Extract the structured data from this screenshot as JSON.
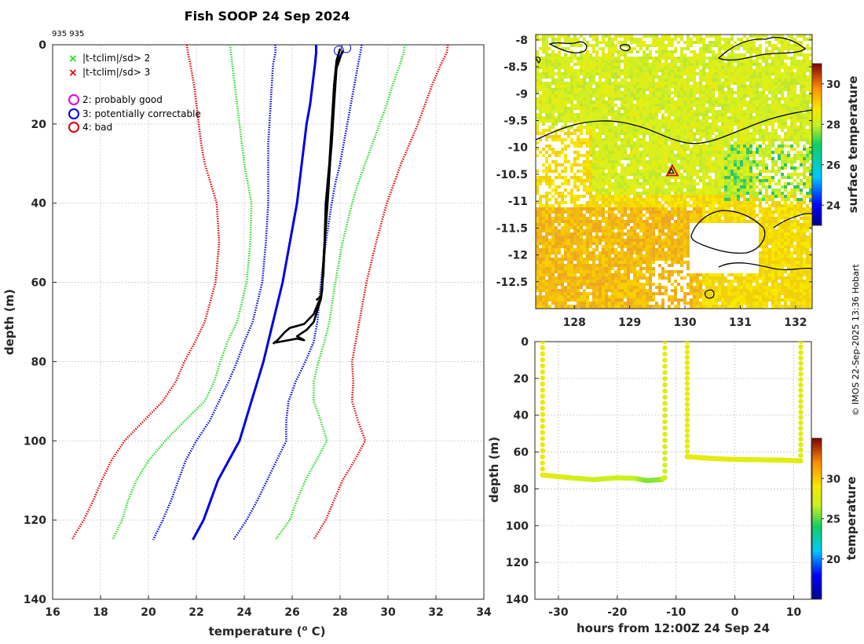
{
  "header": {
    "title": "Fish SOOP 24 Sep 2024",
    "id_label": "935 935"
  },
  "credit": "© IMOS 22-Sep-2025 13:36 Hobart",
  "colors": {
    "red": "#e00000",
    "green": "#22dd22",
    "blue": "#0000e0",
    "black": "#000000",
    "magenta": "#e000e0",
    "grid": "#c8c8c8"
  },
  "chart_data": [
    {
      "type": "line",
      "panel": "profile",
      "title": "Fish SOOP 24 Sep 2024",
      "xlabel": "temperature (",
      "xlabel_sup": "o",
      "xlabel_tail": " C)",
      "ylabel": "depth (m)",
      "xlim": [
        16,
        34
      ],
      "ylim": [
        0,
        140
      ],
      "xticks": [
        "16",
        "18",
        "20",
        "22",
        "24",
        "26",
        "28",
        "30",
        "32",
        "34"
      ],
      "yticks": [
        "0",
        "20",
        "40",
        "60",
        "80",
        "100",
        "120",
        "140"
      ],
      "legend": [
        {
          "marker": "x",
          "color": "green",
          "label": "|t-tclim|/sd> 2"
        },
        {
          "marker": "x",
          "color": "red",
          "label": "|t-tclim|/sd> 3"
        },
        {
          "marker": "o",
          "color": "magenta",
          "label": "2: probably good"
        },
        {
          "marker": "o",
          "color": "blue",
          "label": "3: potentially correctable"
        },
        {
          "marker": "o",
          "color": "red",
          "label": "4: bad"
        }
      ],
      "depth": [
        0,
        2,
        5,
        10,
        15,
        20,
        25,
        30,
        35,
        40,
        50,
        60,
        70,
        75,
        80,
        85,
        90,
        95,
        100,
        105,
        110,
        115,
        120,
        125
      ],
      "series": [
        {
          "name": "clim_mean",
          "style": "solid",
          "color": "blue",
          "values": [
            27.0,
            27.0,
            26.95,
            26.85,
            26.75,
            26.6,
            26.5,
            26.4,
            26.3,
            26.2,
            25.9,
            25.6,
            25.2,
            25.0,
            24.8,
            24.55,
            24.3,
            24.05,
            23.8,
            23.35,
            22.9,
            22.6,
            22.3,
            21.85
          ]
        },
        {
          "name": "clim_minus_2sd",
          "style": "dotted",
          "color": "blue",
          "values": [
            25.3,
            25.3,
            25.2,
            25.15,
            25.1,
            25.05,
            25.0,
            25.0,
            25.0,
            25.0,
            24.9,
            24.75,
            24.35,
            24.0,
            23.7,
            23.35,
            22.95,
            22.55,
            22.0,
            21.55,
            21.25,
            20.95,
            20.6,
            20.2
          ]
        },
        {
          "name": "clim_plus_2sd",
          "style": "dotted",
          "color": "blue",
          "values": [
            28.9,
            28.85,
            28.75,
            28.6,
            28.45,
            28.3,
            28.15,
            28.0,
            27.8,
            27.65,
            27.4,
            27.2,
            27.05,
            26.9,
            26.55,
            26.15,
            25.85,
            25.75,
            25.75,
            25.35,
            24.95,
            24.55,
            24.1,
            23.55
          ]
        },
        {
          "name": "clim_minus_4sd",
          "style": "dotted",
          "color": "green",
          "values": [
            23.4,
            23.45,
            23.5,
            23.6,
            23.7,
            23.8,
            23.9,
            24.0,
            24.15,
            24.3,
            24.25,
            24.1,
            23.7,
            23.3,
            23.0,
            22.75,
            22.35,
            21.5,
            20.7,
            20.0,
            19.5,
            19.15,
            18.9,
            18.5
          ]
        },
        {
          "name": "clim_plus_4sd",
          "style": "dotted",
          "color": "green",
          "values": [
            30.7,
            30.65,
            30.5,
            30.2,
            29.95,
            29.65,
            29.35,
            29.05,
            28.75,
            28.5,
            28.1,
            27.8,
            27.55,
            27.35,
            27.1,
            26.9,
            26.9,
            27.2,
            27.45,
            27.0,
            26.55,
            26.2,
            25.9,
            25.3
          ]
        },
        {
          "name": "clim_minus_6sd",
          "style": "dotted",
          "color": "red",
          "values": [
            21.6,
            21.65,
            21.75,
            21.9,
            22.0,
            22.1,
            22.2,
            22.35,
            22.6,
            22.85,
            22.95,
            22.8,
            22.35,
            21.95,
            21.5,
            21.15,
            20.6,
            19.8,
            19.0,
            18.45,
            18.05,
            17.7,
            17.3,
            16.8
          ]
        },
        {
          "name": "clim_plus_6sd",
          "style": "dotted",
          "color": "red",
          "values": [
            32.5,
            32.45,
            32.2,
            31.85,
            31.55,
            31.25,
            30.9,
            30.55,
            30.25,
            29.95,
            29.5,
            29.1,
            28.8,
            28.65,
            28.5,
            28.55,
            28.5,
            28.75,
            29.05,
            28.6,
            28.1,
            27.75,
            27.4,
            26.9
          ]
        }
      ],
      "observed_series": [
        {
          "name": "cast_descent",
          "color": "black",
          "points": [
            [
              28.0,
              1
            ],
            [
              27.85,
              4
            ],
            [
              27.75,
              10
            ],
            [
              27.65,
              20
            ],
            [
              27.55,
              30
            ],
            [
              27.4,
              40
            ],
            [
              27.35,
              50
            ],
            [
              27.25,
              60
            ],
            [
              27.2,
              64
            ],
            [
              27.1,
              65
            ],
            [
              26.9,
              68
            ],
            [
              26.5,
              70.5
            ],
            [
              25.9,
              71.5
            ],
            [
              25.7,
              72.5
            ],
            [
              25.4,
              74.5
            ],
            [
              25.2,
              75.5
            ]
          ]
        },
        {
          "name": "cast_ascent",
          "color": "black",
          "points": [
            [
              25.3,
              75.2
            ],
            [
              26.2,
              74.2
            ],
            [
              26.5,
              74.6
            ],
            [
              26.2,
              73.6
            ],
            [
              26.6,
              72.0
            ],
            [
              26.9,
              70.0
            ],
            [
              27.05,
              67.0
            ],
            [
              27.2,
              64.2
            ],
            [
              27.25,
              62.0
            ],
            [
              27.3,
              55.0
            ],
            [
              27.4,
              45.0
            ],
            [
              27.5,
              35.0
            ],
            [
              27.65,
              25.0
            ],
            [
              27.75,
              15.0
            ],
            [
              27.85,
              6.0
            ],
            [
              28.1,
              1.5
            ]
          ]
        },
        {
          "name": "cast_trace",
          "color": "black",
          "points": [
            [
              27.95,
              2
            ],
            [
              27.8,
              8
            ],
            [
              27.7,
              18
            ],
            [
              27.6,
              28
            ],
            [
              27.5,
              38
            ],
            [
              27.38,
              48
            ],
            [
              27.3,
              58
            ],
            [
              27.2,
              63.5
            ],
            [
              27.0,
              64.5
            ]
          ]
        }
      ],
      "flag_circles": [
        [
          27.95,
          1.5
        ],
        [
          28.25,
          0.8
        ]
      ]
    },
    {
      "type": "heatmap",
      "panel": "map",
      "xlim": [
        127.3,
        132.3
      ],
      "ylim": [
        -13,
        -7.9
      ],
      "xticks": [
        "128",
        "129",
        "130",
        "131",
        "132"
      ],
      "yticks": [
        "-8",
        "-8.5",
        "-9",
        "-9.5",
        "-10",
        "-10.5",
        "-11",
        "-11.5",
        "-12",
        "-12.5"
      ],
      "colorbar": {
        "label": "surface temperature",
        "range": [
          23,
          31
        ],
        "ticks": [
          "24",
          "26",
          "28",
          "30"
        ]
      },
      "marker": {
        "lon": 129.77,
        "lat": -10.45
      }
    },
    {
      "type": "scatter",
      "panel": "time_depth",
      "xlabel": "hours from 12:00Z 24 Sep 24",
      "ylabel": "depth (m)",
      "xlim": [
        -34,
        13
      ],
      "ylim": [
        0,
        140
      ],
      "xticks": [
        "-30",
        "-20",
        "-10",
        "0",
        "10"
      ],
      "yticks": [
        "0",
        "20",
        "40",
        "60",
        "80",
        "100",
        "120",
        "140"
      ],
      "colorbar": {
        "label": "temperature",
        "range": [
          15,
          35
        ],
        "ticks": [
          "20",
          "25",
          "30"
        ]
      },
      "segments": [
        {
          "hours": [
            -32.7,
            -32.7,
            -28,
            -24,
            -20,
            -17,
            -15,
            -12.5,
            -11.9,
            -11.9
          ],
          "depths": [
            0,
            72.5,
            74,
            75,
            74,
            74.3,
            75.5,
            75,
            73.8,
            0
          ],
          "temps": [
            28.5,
            28.3,
            27.4,
            26.8,
            27.0,
            26.6,
            25.6,
            25.8,
            27.0,
            28.2
          ]
        },
        {
          "hours": [
            -8.1,
            -8.1,
            -4,
            0,
            4,
            8,
            11.2,
            11.2
          ],
          "depths": [
            0,
            62.5,
            63.5,
            64,
            64.2,
            64.4,
            64.8,
            0
          ],
          "temps": [
            28.4,
            28.2,
            28.1,
            28.0,
            28.0,
            27.9,
            27.8,
            28.3
          ]
        }
      ]
    }
  ]
}
